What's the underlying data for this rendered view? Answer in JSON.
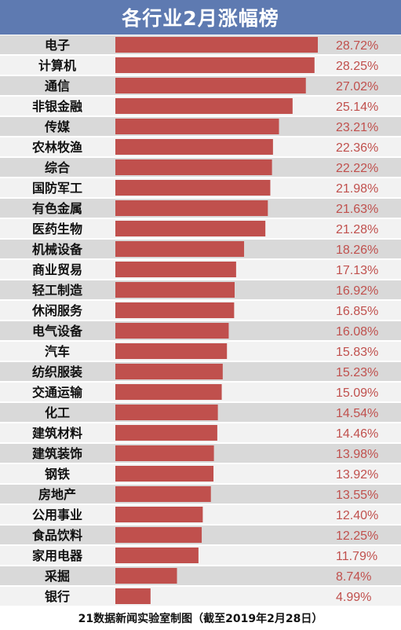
{
  "title": "各行业2月涨幅榜",
  "footer": "21数据新闻实验室制图（截至2019年2月28日）",
  "colors": {
    "bar": "#c0504d",
    "value_text": "#c0504d",
    "header_bg": "#5e7ab1",
    "row_stripe": "#d9d9d9"
  },
  "chart_data": {
    "type": "bar",
    "orientation": "horizontal",
    "title": "各行业2月涨幅榜",
    "unit": "%",
    "categories": [
      "电子",
      "计算机",
      "通信",
      "非银金融",
      "传媒",
      "农林牧渔",
      "综合",
      "国防军工",
      "有色金属",
      "医药生物",
      "机械设备",
      "商业贸易",
      "轻工制造",
      "休闲服务",
      "电气设备",
      "汽车",
      "纺织服装",
      "交通运输",
      "化工",
      "建筑材料",
      "建筑装饰",
      "钢铁",
      "房地产",
      "公用事业",
      "食品饮料",
      "家用电器",
      "采掘",
      "银行"
    ],
    "values": [
      28.72,
      28.25,
      27.02,
      25.14,
      23.21,
      22.36,
      22.22,
      21.98,
      21.63,
      21.28,
      18.26,
      17.13,
      16.92,
      16.85,
      16.08,
      15.83,
      15.23,
      15.09,
      14.54,
      14.46,
      13.98,
      13.92,
      13.55,
      12.4,
      12.25,
      11.79,
      8.74,
      4.99
    ],
    "value_labels": [
      "28.72%",
      "28.25%",
      "27.02%",
      "25.14%",
      "23.21%",
      "22.36%",
      "22.22%",
      "21.98%",
      "21.63%",
      "21.28%",
      "18.26%",
      "17.13%",
      "16.92%",
      "16.85%",
      "16.08%",
      "15.83%",
      "15.23%",
      "15.09%",
      "14.54%",
      "14.46%",
      "13.98%",
      "13.92%",
      "13.55%",
      "12.40%",
      "12.25%",
      "11.79%",
      "8.74%",
      "4.99%"
    ],
    "xlim": [
      0,
      28.72
    ],
    "grid": false,
    "legend": "none"
  }
}
